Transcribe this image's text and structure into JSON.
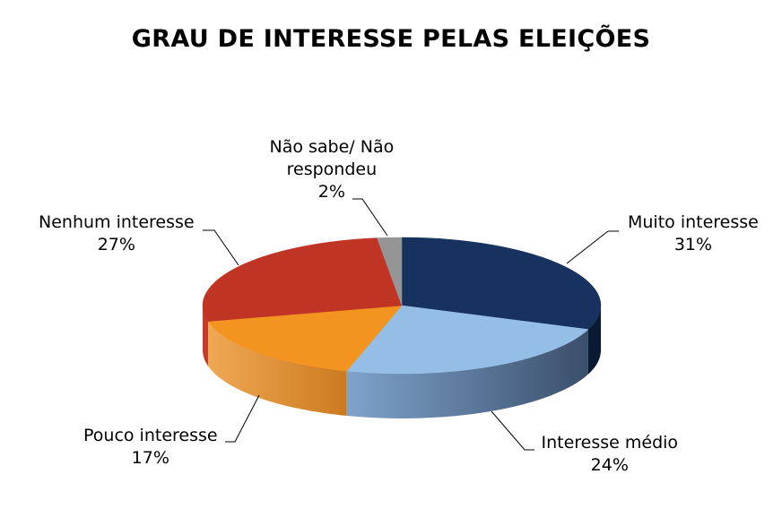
{
  "chart_data": {
    "type": "pie",
    "title": "GRAU DE INTERESSE PELAS ELEIÇÕES",
    "slices": [
      {
        "label": "Muito interesse",
        "value": 31,
        "value_label": "31%",
        "color": "#17325E",
        "side_color_light": "#1E3D6E",
        "side_color_dark": "#0B1A33"
      },
      {
        "label": "Interesse médio",
        "value": 24,
        "value_label": "24%",
        "color": "#95BEE6",
        "side_color_light": "#7FA3CC",
        "side_color_dark": "#3A4F6B"
      },
      {
        "label": "Pouco interesse",
        "value": 17,
        "value_label": "17%",
        "color": "#F39320",
        "side_color_light": "#F0A855",
        "side_color_dark": "#CC7A1E"
      },
      {
        "label": "Nenhum interesse",
        "value": 27,
        "value_label": "27%",
        "color": "#C03424",
        "side_color_light": "#C53A28",
        "side_color_dark": "#8F2418"
      },
      {
        "label": "Não sabe/ Não respondeu",
        "label_lines": [
          "Não sabe/ Não",
          "respondeu"
        ],
        "value": 2,
        "value_label": "2%",
        "color": "#959595",
        "side_color_light": "#A0A0A0",
        "side_color_dark": "#707070"
      }
    ]
  }
}
